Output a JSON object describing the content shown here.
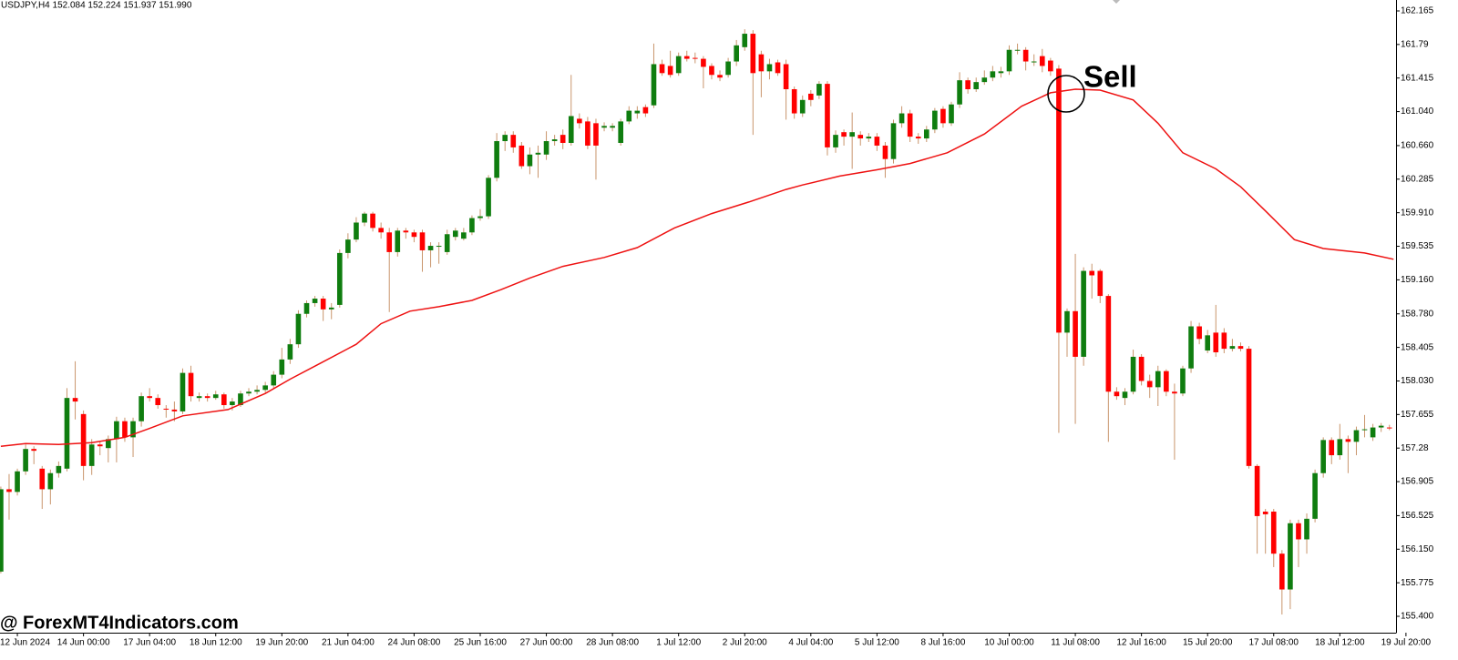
{
  "chart_data": {
    "type": "candlestick",
    "title": "USDJPY,H4  152.084 152.224 151.937 151.990",
    "watermark": "@ ForexMT4Indicators.com",
    "annotations": [
      {
        "text": "Sell"
      }
    ],
    "up_color": "#0f7d0f",
    "down_color": "#ff0000",
    "wick_color": "#c9956c",
    "grid": false,
    "open": [
      155.9,
      156.82,
      156.79,
      157.02,
      157.27,
      157.05,
      156.82,
      157.0,
      157.05,
      157.84,
      157.66,
      157.08,
      157.32,
      157.28,
      157.38,
      157.58,
      157.4,
      157.58,
      157.86,
      157.84,
      157.72,
      157.71,
      157.69,
      158.12,
      157.84,
      157.86,
      157.84,
      157.88,
      157.76,
      157.76,
      157.89,
      157.91,
      157.93,
      157.98,
      158.1,
      158.27,
      158.44,
      158.78,
      158.9,
      158.95,
      158.83,
      158.88,
      159.46,
      159.61,
      159.8,
      159.9,
      159.74,
      159.69,
      159.47,
      159.71,
      159.69,
      159.69,
      159.49,
      159.54,
      159.47,
      159.64,
      159.62,
      159.69,
      159.85,
      159.87,
      160.3,
      160.71,
      160.78,
      160.66,
      160.43,
      160.56,
      160.56,
      160.71,
      160.78,
      160.69,
      160.96,
      160.93,
      160.91,
      160.86,
      160.86,
      160.69,
      160.93,
      161.02,
      161.09,
      161.11,
      161.57,
      161.55,
      161.47,
      161.66,
      161.64,
      161.63,
      161.55,
      161.45,
      161.45,
      161.6,
      161.76,
      161.91,
      161.68,
      161.49,
      161.59,
      161.57,
      161.29,
      161.02,
      161.24,
      161.22,
      161.35,
      160.64,
      160.81,
      160.76,
      160.78,
      160.74,
      160.76,
      160.66,
      160.51,
      160.91,
      161.02,
      160.76,
      160.74,
      160.84,
      161.07,
      160.91,
      161.12,
      161.39,
      161.29,
      161.37,
      161.42,
      161.47,
      161.49,
      161.73,
      161.73,
      161.6,
      161.66,
      161.61,
      161.52,
      158.57,
      158.81,
      158.3,
      159.26,
      159.26,
      158.98,
      157.91,
      157.84,
      157.91,
      158.3,
      158.03,
      157.96,
      158.14,
      157.91,
      157.89,
      158.17,
      158.64,
      158.37,
      158.57,
      158.57,
      158.39,
      158.42,
      158.39,
      157.08,
      156.57,
      156.57,
      156.1,
      155.7,
      156.44,
      156.26,
      156.49,
      157.0,
      157.37,
      157.2,
      157.38,
      157.35,
      157.48,
      157.4,
      157.51,
      157.51
    ],
    "high": [
      156.85,
      156.99,
      157.05,
      157.32,
      157.3,
      157.08,
      157.04,
      157.13,
      157.95,
      158.25,
      157.7,
      157.38,
      157.36,
      157.42,
      157.63,
      157.62,
      157.62,
      157.9,
      157.95,
      157.88,
      157.76,
      157.8,
      158.17,
      158.2,
      157.9,
      157.89,
      157.92,
      157.9,
      157.84,
      157.92,
      157.95,
      157.98,
      158.02,
      158.14,
      158.4,
      158.5,
      158.82,
      158.93,
      158.98,
      158.98,
      158.9,
      159.5,
      159.68,
      159.86,
      159.92,
      159.92,
      159.8,
      159.74,
      159.74,
      159.74,
      159.72,
      159.72,
      159.58,
      159.58,
      159.72,
      159.74,
      159.74,
      159.88,
      159.95,
      160.33,
      160.8,
      160.82,
      160.82,
      160.7,
      160.64,
      160.66,
      160.82,
      160.78,
      160.84,
      161.45,
      161.02,
      160.98,
      160.96,
      160.92,
      160.91,
      160.96,
      161.1,
      161.1,
      161.12,
      161.8,
      161.62,
      161.72,
      161.7,
      161.72,
      161.7,
      161.66,
      161.58,
      161.5,
      161.64,
      161.84,
      161.96,
      161.95,
      161.72,
      161.63,
      161.62,
      161.62,
      161.32,
      161.22,
      161.28,
      161.38,
      161.38,
      160.83,
      160.84,
      161.03,
      160.82,
      160.8,
      160.8,
      160.7,
      160.95,
      161.1,
      161.06,
      160.8,
      160.88,
      161.08,
      161.1,
      161.15,
      161.48,
      161.42,
      161.42,
      161.5,
      161.55,
      161.54,
      161.78,
      161.8,
      161.76,
      161.68,
      161.74,
      161.64,
      161.56,
      158.84,
      159.45,
      159.3,
      159.34,
      159.28,
      159.0,
      157.96,
      157.95,
      158.38,
      158.33,
      158.1,
      158.2,
      158.16,
      158.0,
      158.2,
      158.7,
      158.68,
      158.6,
      158.88,
      158.62,
      158.5,
      158.46,
      158.42,
      157.1,
      156.6,
      156.6,
      156.14,
      156.48,
      156.48,
      156.55,
      157.04,
      157.4,
      157.4,
      157.55,
      157.42,
      157.52,
      157.65,
      157.55,
      157.56,
      157.54
    ],
    "low": [
      155.88,
      156.48,
      156.75,
      156.98,
      157.1,
      156.6,
      156.65,
      156.95,
      157.02,
      157.6,
      156.92,
      156.98,
      157.2,
      157.12,
      157.12,
      157.35,
      157.18,
      157.52,
      157.8,
      157.72,
      157.62,
      157.58,
      157.66,
      157.8,
      157.8,
      157.8,
      157.82,
      157.72,
      157.7,
      157.74,
      157.86,
      157.88,
      157.9,
      157.94,
      158.06,
      158.22,
      158.4,
      158.74,
      158.86,
      158.7,
      158.72,
      158.85,
      159.4,
      159.58,
      159.76,
      159.7,
      159.62,
      158.8,
      159.42,
      159.62,
      159.58,
      159.25,
      159.3,
      159.34,
      159.44,
      159.6,
      159.6,
      159.66,
      159.82,
      159.84,
      160.26,
      160.6,
      160.58,
      160.4,
      160.34,
      160.3,
      160.5,
      160.66,
      160.62,
      160.66,
      160.85,
      160.62,
      160.28,
      160.82,
      160.82,
      160.66,
      160.9,
      160.96,
      160.98,
      161.08,
      161.44,
      161.42,
      161.44,
      161.6,
      161.58,
      161.3,
      161.4,
      161.38,
      161.42,
      161.55,
      161.72,
      160.78,
      161.2,
      161.4,
      161.44,
      160.95,
      160.96,
      160.98,
      161.1,
      161.18,
      160.55,
      160.58,
      160.66,
      160.4,
      160.66,
      160.7,
      160.6,
      160.3,
      160.46,
      160.86,
      160.7,
      160.68,
      160.7,
      160.8,
      160.86,
      160.88,
      161.08,
      161.24,
      161.26,
      161.34,
      161.38,
      161.42,
      161.45,
      161.68,
      161.5,
      161.55,
      161.48,
      161.44,
      157.45,
      158.3,
      157.55,
      158.2,
      158.95,
      158.9,
      157.35,
      157.82,
      157.76,
      157.88,
      157.98,
      157.84,
      157.75,
      157.86,
      157.15,
      157.86,
      158.12,
      158.44,
      158.34,
      158.3,
      158.34,
      158.36,
      158.36,
      157.05,
      156.1,
      156.1,
      155.95,
      155.42,
      155.48,
      155.95,
      156.1,
      156.45,
      156.95,
      157.1,
      157.15,
      157.0,
      157.2,
      157.4,
      157.36,
      157.46,
      157.48
    ],
    "close": [
      156.82,
      156.79,
      157.02,
      157.27,
      157.25,
      156.82,
      157.0,
      157.08,
      157.84,
      157.8,
      157.08,
      157.32,
      157.3,
      157.38,
      157.58,
      157.4,
      157.58,
      157.86,
      157.84,
      157.76,
      157.71,
      157.69,
      158.12,
      157.86,
      157.86,
      157.84,
      157.88,
      157.76,
      157.8,
      157.89,
      157.91,
      157.93,
      157.98,
      158.1,
      158.27,
      158.44,
      158.78,
      158.9,
      158.95,
      158.83,
      158.85,
      159.46,
      159.61,
      159.8,
      159.9,
      159.74,
      159.69,
      159.47,
      159.71,
      159.69,
      159.64,
      159.49,
      159.54,
      159.54,
      159.67,
      159.71,
      159.69,
      159.85,
      159.87,
      160.3,
      160.71,
      160.78,
      160.64,
      160.43,
      160.56,
      160.58,
      160.71,
      160.73,
      160.69,
      160.99,
      160.91,
      160.66,
      160.66,
      160.88,
      160.88,
      160.93,
      161.05,
      161.05,
      161.02,
      161.57,
      161.47,
      161.45,
      161.66,
      161.63,
      161.63,
      161.54,
      161.45,
      161.42,
      161.6,
      161.78,
      161.91,
      161.47,
      161.49,
      161.57,
      161.47,
      161.29,
      161.02,
      161.17,
      161.17,
      161.35,
      160.64,
      160.78,
      160.76,
      160.81,
      160.74,
      160.76,
      160.66,
      160.51,
      160.91,
      161.02,
      160.76,
      160.74,
      160.84,
      161.05,
      160.91,
      161.12,
      161.39,
      161.29,
      161.37,
      161.42,
      161.49,
      161.49,
      161.73,
      161.73,
      161.6,
      161.6,
      161.55,
      161.49,
      158.57,
      158.81,
      158.3,
      159.26,
      159.21,
      158.98,
      157.91,
      157.86,
      157.91,
      158.3,
      158.03,
      157.96,
      158.14,
      157.91,
      157.89,
      158.17,
      158.64,
      158.5,
      158.54,
      158.35,
      158.39,
      158.42,
      158.39,
      157.08,
      156.52,
      156.54,
      156.1,
      155.7,
      156.44,
      156.26,
      156.49,
      157.0,
      157.37,
      157.2,
      157.38,
      157.35,
      157.48,
      157.49,
      157.51,
      157.53,
      157.5
    ],
    "ma_line": {
      "color": "#ee1111",
      "x": [
        0,
        3,
        7,
        11,
        15,
        18,
        22,
        27.5,
        32,
        35,
        38.5,
        43,
        46,
        49.5,
        53,
        57,
        60.5,
        64,
        68,
        73,
        77,
        81.5,
        86,
        90.5,
        95,
        97,
        101.5,
        106,
        110,
        114.5,
        119,
        123.5,
        127,
        130,
        133,
        137,
        140,
        143,
        147,
        150,
        153,
        156.5,
        160,
        165,
        168.5
      ],
      "values": [
        157.3,
        157.33,
        157.32,
        157.34,
        157.4,
        157.5,
        157.64,
        157.71,
        157.89,
        158.05,
        158.22,
        158.44,
        158.67,
        158.81,
        158.86,
        158.93,
        159.05,
        159.18,
        159.31,
        159.41,
        159.52,
        159.74,
        159.9,
        160.03,
        160.17,
        160.22,
        160.32,
        160.39,
        160.46,
        160.58,
        160.79,
        161.1,
        161.25,
        161.29,
        161.28,
        161.17,
        160.91,
        160.58,
        160.4,
        160.2,
        159.93,
        159.61,
        159.51,
        159.46,
        159.39
      ]
    },
    "xlim": [
      -0.1,
      168.8
    ],
    "xticks": [
      {
        "value": 2,
        "label": "12 Jun 2024"
      },
      {
        "value": 10,
        "label": "14 Jun 00:00"
      },
      {
        "value": 18,
        "label": "17 Jun 04:00"
      },
      {
        "value": 26,
        "label": "18 Jun 12:00"
      },
      {
        "value": 34,
        "label": "19 Jun 20:00"
      },
      {
        "value": 42,
        "label": "21 Jun 04:00"
      },
      {
        "value": 50,
        "label": "24 Jun 08:00"
      },
      {
        "value": 58,
        "label": "25 Jun 16:00"
      },
      {
        "value": 66,
        "label": "27 Jun 00:00"
      },
      {
        "value": 74,
        "label": "28 Jun 08:00"
      },
      {
        "value": 82,
        "label": "1 Jul 12:00"
      },
      {
        "value": 90,
        "label": "2 Jul 20:00"
      },
      {
        "value": 98,
        "label": "4 Jul 04:00"
      },
      {
        "value": 106,
        "label": "5 Jul 12:00"
      },
      {
        "value": 114,
        "label": "8 Jul 16:00"
      },
      {
        "value": 122,
        "label": "10 Jul 00:00"
      },
      {
        "value": 130,
        "label": "11 Jul 08:00"
      },
      {
        "value": 138,
        "label": "12 Jul 16:00"
      },
      {
        "value": 146,
        "label": "15 Jul 20:00"
      },
      {
        "value": 154,
        "label": "17 Jul 08:00"
      },
      {
        "value": 162,
        "label": "18 Jul 12:00"
      },
      {
        "value": 170,
        "label": "19 Jul 20:00"
      }
    ],
    "ylim": [
      155.217,
      162.287
    ],
    "yticks": [
      162.165,
      161.79,
      161.415,
      {
        "value": 161.04,
        "label": "161.040"
      },
      {
        "value": 160.66,
        "label": "160.660"
      },
      160.285,
      {
        "value": 159.91,
        "label": "159.910"
      },
      159.535,
      {
        "value": 159.16,
        "label": "159.160"
      },
      {
        "value": 158.78,
        "label": "158.780"
      },
      158.405,
      {
        "value": 158.03,
        "label": "158.030"
      },
      157.655,
      157.28,
      156.905,
      156.525,
      {
        "value": 156.15,
        "label": "156.150"
      },
      155.775,
      {
        "value": 155.4,
        "label": "155.400"
      }
    ]
  }
}
